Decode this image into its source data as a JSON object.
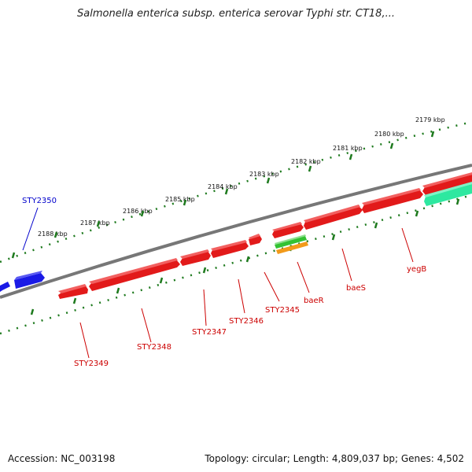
{
  "title": "Salmonella enterica subsp. enterica serovar Typhi str. CT18,...",
  "footer": {
    "accession": "Accession: NC_003198",
    "topology": "Topology: circular; Length: 4,809,037 bp; Genes: 4,502"
  },
  "colors": {
    "backbone": "#777777",
    "tick_marks": "#1e7a1e",
    "gene_red": "#e21a1a",
    "gene_blue": "#1a1ae6",
    "gene_teal": "#2ee8a0",
    "gene_green": "#33c233",
    "gene_orange": "#f29a1a",
    "label_red": "#cc0000",
    "label_blue": "#0000cc"
  },
  "kbp_ticks": [
    "2179 kbp",
    "2180 kbp",
    "2181 kbp",
    "2182 kbp",
    "2183 kbp",
    "2184 kbp",
    "2185 kbp",
    "2186 kbp",
    "2187 kbp",
    "2188 kbp"
  ],
  "gene_labels": [
    "STY2350",
    "STY2349",
    "STY2348",
    "STY2347",
    "STY2346",
    "STY2345",
    "baeR",
    "baeS",
    "yegB"
  ]
}
